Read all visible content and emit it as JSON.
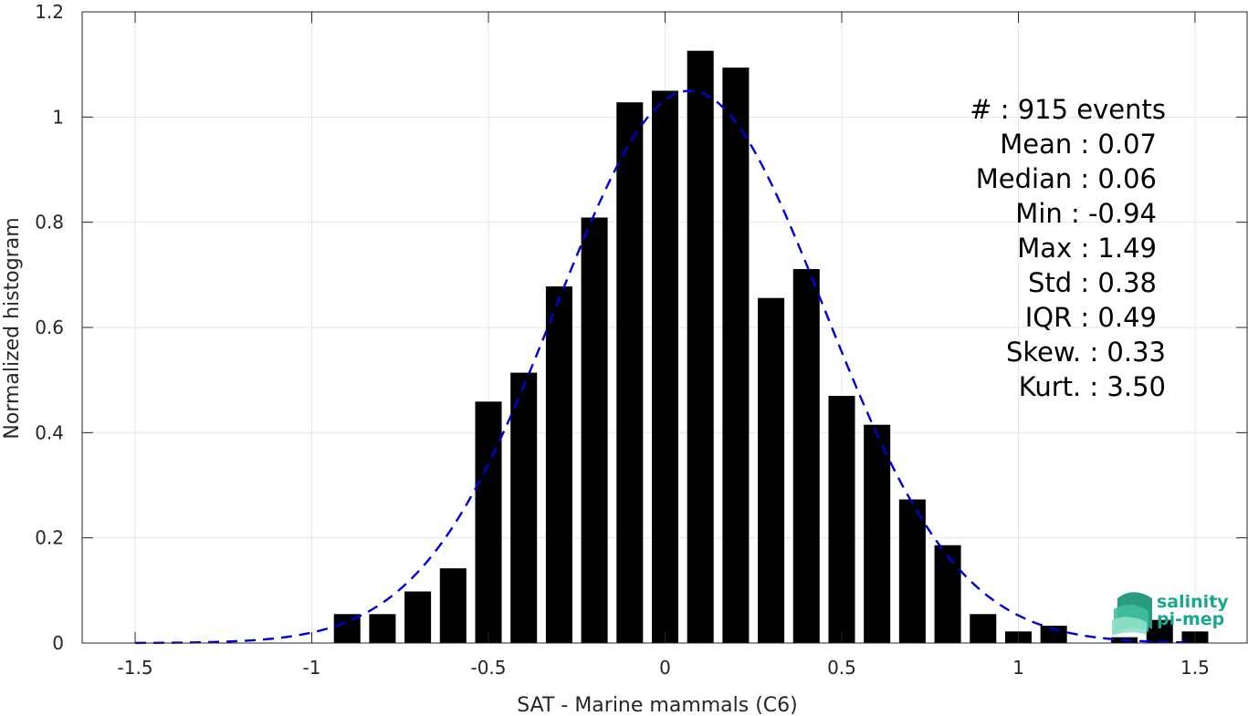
{
  "chart_data": {
    "type": "bar",
    "xlabel": "SAT - Marine mammals (C6)",
    "ylabel": "Normalized histogram",
    "xlim": [
      -1.65,
      1.65
    ],
    "ylim": [
      0,
      1.2
    ],
    "xticks": [
      -1.5,
      -1,
      -0.5,
      0,
      0.5,
      1,
      1.5
    ],
    "xtick_labels": [
      "-1.5",
      "-1",
      "-0.5",
      "0",
      "0.5",
      "1",
      "1.5"
    ],
    "yticks": [
      0,
      0.2,
      0.4,
      0.6,
      0.8,
      1,
      1.2
    ],
    "ytick_labels": [
      "0",
      "0.2",
      "0.4",
      "0.6",
      "0.8",
      "1",
      "1.2"
    ],
    "grid": true,
    "bar_width": 0.075,
    "bar_color": "#000000",
    "bars": [
      {
        "x": -0.9,
        "y": 0.055
      },
      {
        "x": -0.8,
        "y": 0.055
      },
      {
        "x": -0.7,
        "y": 0.098
      },
      {
        "x": -0.6,
        "y": 0.142
      },
      {
        "x": -0.5,
        "y": 0.459
      },
      {
        "x": -0.4,
        "y": 0.514
      },
      {
        "x": -0.3,
        "y": 0.678
      },
      {
        "x": -0.2,
        "y": 0.809
      },
      {
        "x": -0.1,
        "y": 1.028
      },
      {
        "x": 0.0,
        "y": 1.05
      },
      {
        "x": 0.1,
        "y": 1.126
      },
      {
        "x": 0.2,
        "y": 1.094
      },
      {
        "x": 0.3,
        "y": 0.656
      },
      {
        "x": 0.4,
        "y": 0.711
      },
      {
        "x": 0.5,
        "y": 0.47
      },
      {
        "x": 0.6,
        "y": 0.415
      },
      {
        "x": 0.7,
        "y": 0.273
      },
      {
        "x": 0.8,
        "y": 0.186
      },
      {
        "x": 0.9,
        "y": 0.055
      },
      {
        "x": 1.0,
        "y": 0.022
      },
      {
        "x": 1.1,
        "y": 0.033
      },
      {
        "x": 1.3,
        "y": 0.011
      },
      {
        "x": 1.4,
        "y": 0.044
      },
      {
        "x": 1.5,
        "y": 0.022
      }
    ],
    "fit_curve": {
      "style": "dashed",
      "color": "#0000dd",
      "mean": 0.07,
      "std": 0.38,
      "x_range": [
        -1.5,
        1.5
      ],
      "peak": 1.05
    },
    "annotations": [
      "#  : 915 events",
      "Mean : 0.07",
      "Median : 0.06",
      "Min : -0.94",
      "Max : 1.49",
      "Std : 0.38",
      "IQR : 0.49",
      "Skew. : 0.33",
      "Kurt. : 3.50"
    ]
  },
  "logo": {
    "line1": "salinity",
    "line2": "pi-mep",
    "color": "#1aa68f"
  }
}
